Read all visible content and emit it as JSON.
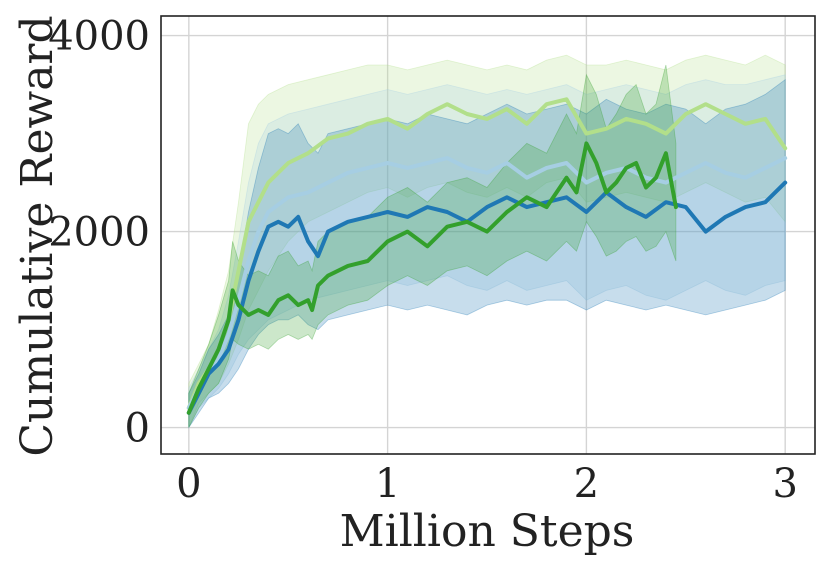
{
  "chart_data": {
    "type": "line",
    "title": "",
    "xlabel": "Million Steps",
    "ylabel": "Cumulative Reward",
    "xlim": [
      -0.14,
      3.15
    ],
    "ylim": [
      -270,
      4200
    ],
    "xticks": [
      0,
      1,
      2,
      3
    ],
    "xtick_labels": [
      "0",
      "1",
      "2",
      "3"
    ],
    "yticks": [
      0,
      2000,
      4000
    ],
    "ytick_labels": [
      "0",
      "2000",
      "4000"
    ],
    "grid": true,
    "legend": "none",
    "series": [
      {
        "color": "#b2df8a",
        "band_color": "#b2df8a",
        "x": [
          0,
          0.05,
          0.1,
          0.15,
          0.2,
          0.25,
          0.3,
          0.35,
          0.4,
          0.5,
          0.6,
          0.7,
          0.8,
          0.9,
          1.0,
          1.1,
          1.2,
          1.3,
          1.4,
          1.5,
          1.6,
          1.7,
          1.8,
          1.9,
          2.0,
          2.1,
          2.2,
          2.3,
          2.4,
          2.5,
          2.6,
          2.7,
          2.8,
          2.9,
          3.0
        ],
        "mean": [
          200,
          450,
          600,
          800,
          1100,
          1600,
          2100,
          2300,
          2500,
          2700,
          2800,
          2950,
          3000,
          3100,
          3150,
          3050,
          3200,
          3300,
          3200,
          3150,
          3250,
          3100,
          3300,
          3350,
          3000,
          3050,
          3150,
          3100,
          3000,
          3200,
          3300,
          3200,
          3100,
          3150,
          2850
        ],
        "lower": [
          0,
          250,
          350,
          450,
          650,
          900,
          1200,
          1400,
          1600,
          1900,
          2100,
          2200,
          2300,
          2400,
          2450,
          2350,
          2450,
          2500,
          2400,
          2350,
          2450,
          2350,
          2500,
          2550,
          2300,
          2350,
          2400,
          2350,
          2300,
          2400,
          2500,
          2400,
          2300,
          2350,
          2100
        ],
        "upper": [
          450,
          650,
          850,
          1200,
          1600,
          2300,
          3100,
          3300,
          3400,
          3500,
          3550,
          3600,
          3650,
          3700,
          3700,
          3650,
          3700,
          3750,
          3700,
          3650,
          3700,
          3650,
          3750,
          3800,
          3700,
          3700,
          3750,
          3700,
          3650,
          3750,
          3800,
          3750,
          3700,
          3800,
          3700
        ]
      },
      {
        "color": "#a6cee3",
        "band_color": "#a6cee3",
        "x": [
          0,
          0.05,
          0.1,
          0.15,
          0.2,
          0.25,
          0.3,
          0.35,
          0.4,
          0.5,
          0.6,
          0.7,
          0.8,
          0.9,
          1.0,
          1.1,
          1.2,
          1.3,
          1.4,
          1.5,
          1.6,
          1.7,
          1.8,
          1.9,
          2.0,
          2.1,
          2.2,
          2.3,
          2.4,
          2.5,
          2.6,
          2.7,
          2.8,
          2.9,
          3.0
        ],
        "mean": [
          200,
          400,
          550,
          700,
          950,
          1300,
          1700,
          2000,
          2200,
          2350,
          2400,
          2500,
          2600,
          2650,
          2700,
          2650,
          2700,
          2750,
          2650,
          2600,
          2700,
          2550,
          2650,
          2700,
          2500,
          2600,
          2650,
          2550,
          2500,
          2600,
          2700,
          2600,
          2550,
          2650,
          2750
        ],
        "lower": [
          0,
          200,
          300,
          400,
          550,
          750,
          900,
          1000,
          1100,
          1200,
          1300,
          1350,
          1400,
          1450,
          1500,
          1450,
          1500,
          1550,
          1450,
          1400,
          1500,
          1400,
          1450,
          1500,
          1300,
          1400,
          1450,
          1350,
          1300,
          1400,
          1500,
          1400,
          1350,
          1450,
          1500
        ],
        "upper": [
          400,
          600,
          800,
          1000,
          1350,
          1900,
          2500,
          2900,
          3100,
          3200,
          3250,
          3300,
          3350,
          3400,
          3450,
          3400,
          3450,
          3500,
          3450,
          3400,
          3450,
          3400,
          3450,
          3500,
          3400,
          3450,
          3500,
          3450,
          3400,
          3500,
          3550,
          3500,
          3500,
          3550,
          3600
        ]
      },
      {
        "color": "#1f78b4",
        "band_color": "#1f78b4",
        "x": [
          0,
          0.05,
          0.1,
          0.15,
          0.2,
          0.25,
          0.3,
          0.35,
          0.4,
          0.45,
          0.5,
          0.55,
          0.6,
          0.65,
          0.7,
          0.8,
          0.9,
          1.0,
          1.1,
          1.2,
          1.3,
          1.4,
          1.5,
          1.6,
          1.7,
          1.8,
          1.9,
          2.0,
          2.1,
          2.2,
          2.3,
          2.4,
          2.5,
          2.6,
          2.7,
          2.8,
          2.9,
          3.0
        ],
        "mean": [
          150,
          350,
          550,
          650,
          800,
          1100,
          1500,
          1800,
          2050,
          2100,
          2050,
          2150,
          1900,
          1750,
          2000,
          2100,
          2150,
          2200,
          2150,
          2250,
          2200,
          2100,
          2250,
          2350,
          2250,
          2300,
          2350,
          2200,
          2400,
          2250,
          2150,
          2300,
          2250,
          2000,
          2150,
          2250,
          2300,
          2500
        ],
        "lower": [
          0,
          150,
          300,
          350,
          450,
          600,
          800,
          950,
          1050,
          1100,
          1100,
          1150,
          1050,
          1000,
          1100,
          1150,
          1200,
          1250,
          1200,
          1250,
          1200,
          1150,
          1250,
          1300,
          1250,
          1300,
          1300,
          1200,
          1300,
          1250,
          1200,
          1250,
          1200,
          1150,
          1200,
          1250,
          1300,
          1400
        ],
        "upper": [
          350,
          550,
          800,
          950,
          1150,
          1600,
          2200,
          2650,
          3000,
          3050,
          3000,
          3100,
          2900,
          2800,
          3000,
          3050,
          3100,
          3150,
          3100,
          3200,
          3150,
          3100,
          3200,
          3300,
          3200,
          3250,
          3300,
          3200,
          3350,
          3250,
          3200,
          3300,
          3250,
          3100,
          3250,
          3300,
          3400,
          3550
        ]
      },
      {
        "color": "#33a02c",
        "band_color": "#33a02c",
        "x": [
          0,
          0.05,
          0.1,
          0.15,
          0.2,
          0.22,
          0.25,
          0.3,
          0.35,
          0.4,
          0.45,
          0.5,
          0.55,
          0.6,
          0.62,
          0.65,
          0.7,
          0.8,
          0.9,
          1.0,
          1.1,
          1.2,
          1.3,
          1.4,
          1.5,
          1.6,
          1.7,
          1.8,
          1.9,
          1.95,
          2.0,
          2.05,
          2.1,
          2.15,
          2.2,
          2.25,
          2.3,
          2.35,
          2.4,
          2.45
        ],
        "mean": [
          150,
          400,
          600,
          800,
          1100,
          1400,
          1250,
          1150,
          1200,
          1150,
          1300,
          1350,
          1250,
          1300,
          1200,
          1450,
          1550,
          1650,
          1700,
          1900,
          2000,
          1850,
          2050,
          2100,
          2000,
          2200,
          2350,
          2250,
          2550,
          2400,
          2900,
          2700,
          2400,
          2500,
          2650,
          2700,
          2450,
          2550,
          2800,
          2250
        ],
        "lower": [
          0,
          200,
          350,
          450,
          700,
          900,
          850,
          800,
          850,
          800,
          900,
          950,
          900,
          950,
          900,
          1050,
          1150,
          1250,
          1300,
          1450,
          1550,
          1450,
          1600,
          1650,
          1550,
          1700,
          1800,
          1700,
          1900,
          1800,
          2100,
          1950,
          1750,
          1800,
          1900,
          1950,
          1800,
          1850,
          2000,
          1700
        ],
        "upper": [
          350,
          600,
          850,
          1150,
          1500,
          1900,
          1700,
          1550,
          1600,
          1550,
          1750,
          1800,
          1650,
          1700,
          1600,
          1900,
          2000,
          2100,
          2150,
          2350,
          2450,
          2300,
          2500,
          2550,
          2450,
          2700,
          2900,
          2800,
          3200,
          3000,
          3600,
          3400,
          3050,
          3200,
          3400,
          3500,
          3200,
          3300,
          3700,
          2900
        ]
      }
    ]
  }
}
